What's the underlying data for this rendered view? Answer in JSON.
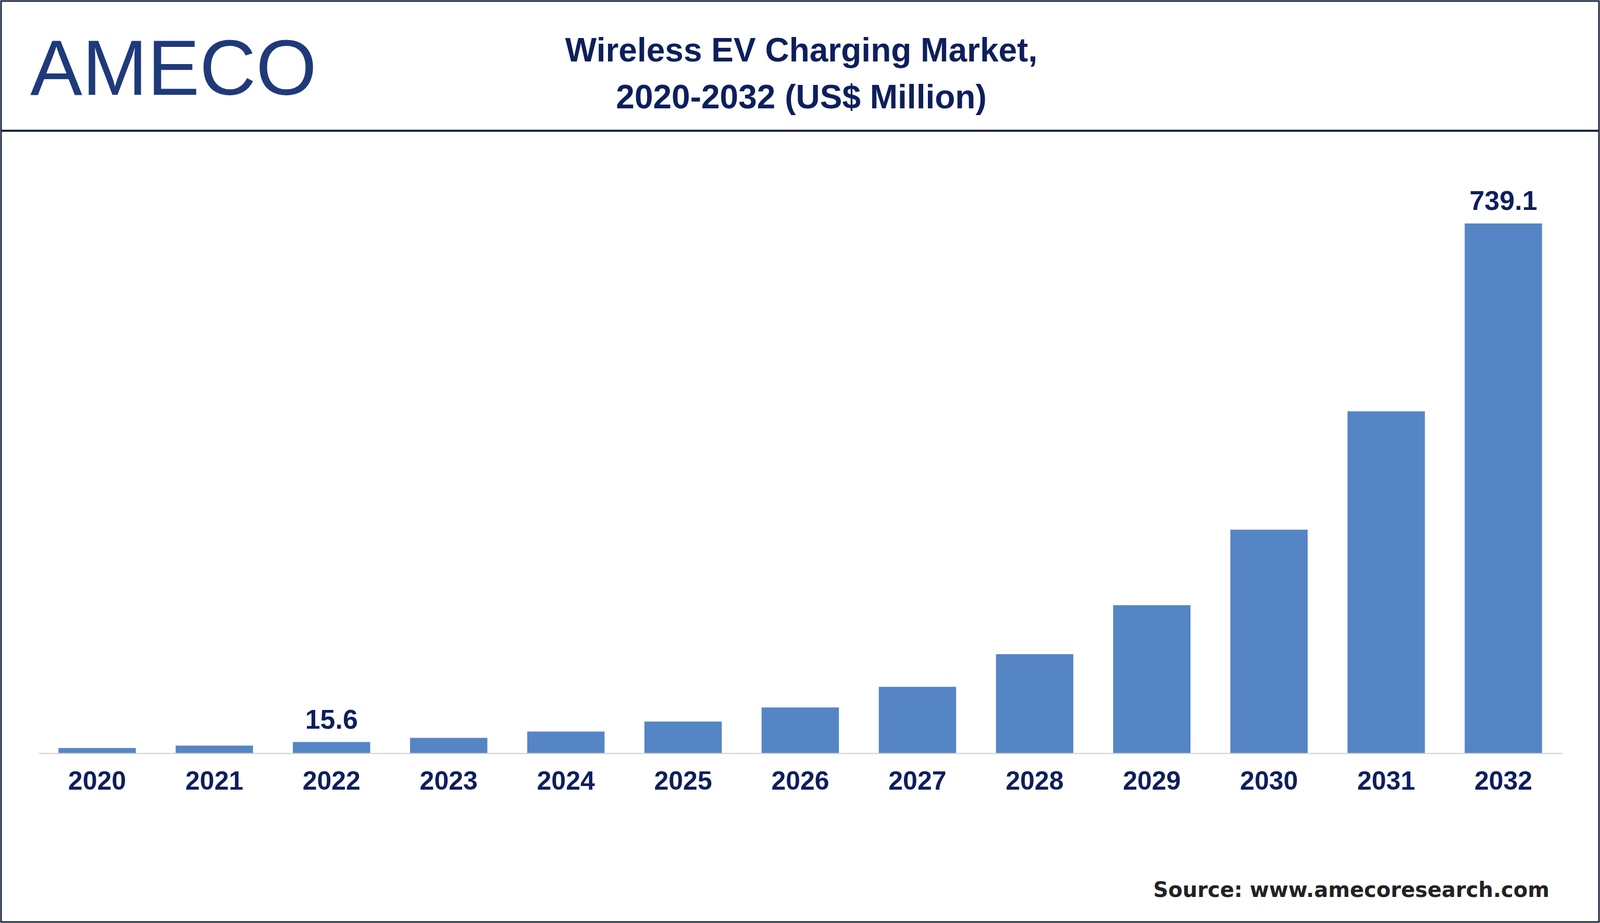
{
  "logo": "AMECO",
  "source": "Source: www.amecoresearch.com",
  "chart_data": {
    "type": "bar",
    "title": "Wireless EV Charging Market,\n2020-2032 (US$ Million)",
    "categories": [
      "2020",
      "2021",
      "2022",
      "2023",
      "2024",
      "2025",
      "2026",
      "2027",
      "2028",
      "2029",
      "2030",
      "2031",
      "2032"
    ],
    "values": [
      7.2,
      10.6,
      15.6,
      21.4,
      30.2,
      44.1,
      63.8,
      92.6,
      138.2,
      206.5,
      311.9,
      477.0,
      739.1
    ],
    "value_labels": [
      null,
      null,
      "15.6",
      null,
      null,
      null,
      null,
      null,
      null,
      null,
      null,
      null,
      "739.1"
    ],
    "data_labels": true,
    "color": "#5585c5",
    "ylim": [
      0,
      739.1
    ],
    "tick_labels": "x",
    "grid": false
  }
}
